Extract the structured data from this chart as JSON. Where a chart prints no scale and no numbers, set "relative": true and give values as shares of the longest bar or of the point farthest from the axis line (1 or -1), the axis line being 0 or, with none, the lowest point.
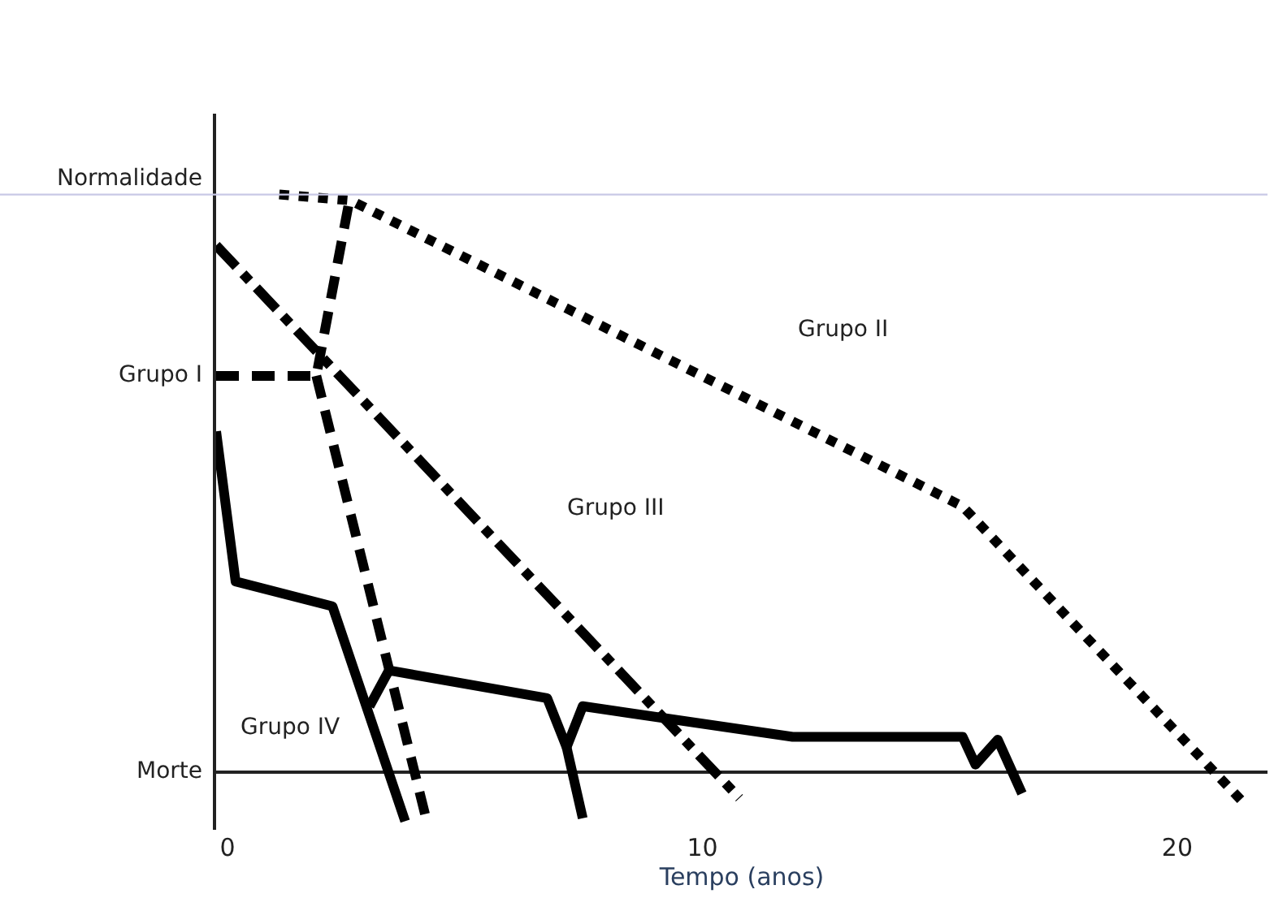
{
  "chart_data": {
    "type": "line",
    "xlabel": "Tempo (anos)",
    "relative": true,
    "xlim": [
      -0.24,
      21.9
    ],
    "xticks": [
      0,
      10,
      20
    ],
    "legend": false,
    "marker": "none",
    "ref_lines": [
      {
        "axis": "y",
        "value": 1,
        "color": "#c8c8e6",
        "label": "Normalidade"
      }
    ],
    "series": [
      {
        "color": "#000000",
        "line_style": "dashed",
        "x": [
          -0.24,
          1.87,
          2.59
        ],
        "values": [
          0.686,
          0.686,
          1.0
        ]
      },
      {
        "color": "#000000",
        "line_style": "dashed",
        "x": [
          1.87,
          4.18
        ],
        "values": [
          0.686,
          -0.08
        ]
      },
      {
        "color": "#000000",
        "line_style": "dotted",
        "x": [
          1.09,
          2.59,
          15.48,
          18.7,
          21.36
        ],
        "values": [
          1.0,
          0.99,
          0.46,
          0.18,
          -0.05
        ]
      },
      {
        "color": "#000000",
        "line_style": "dashdot",
        "x": [
          -0.24,
          10.78
        ],
        "values": [
          0.912,
          -0.045
        ]
      },
      {
        "color": "#000000",
        "line_style": "solid",
        "x": [
          -0.24,
          0.17,
          2.21,
          3.74
        ],
        "values": [
          0.59,
          0.33,
          0.287,
          -0.085
        ]
      },
      {
        "color": "#000000",
        "line_style": "solid",
        "x": [
          2.99,
          3.4,
          6.73,
          7.14,
          7.48,
          11.9,
          15.48,
          15.75,
          16.22,
          16.73
        ],
        "values": [
          0.114,
          0.176,
          0.128,
          0.043,
          0.114,
          0.061,
          0.061,
          0.013,
          0.056,
          -0.037
        ]
      },
      {
        "color": "#000000",
        "line_style": "solid",
        "x": [
          7.14,
          7.48
        ],
        "values": [
          0.043,
          -0.08
        ]
      }
    ],
    "annotations": [
      {
        "text": "Grupo I",
        "x": -0.24,
        "y": 0.686
      },
      "Grupo II",
      "Grupo III",
      "Grupo IV",
      "Morte"
    ]
  }
}
